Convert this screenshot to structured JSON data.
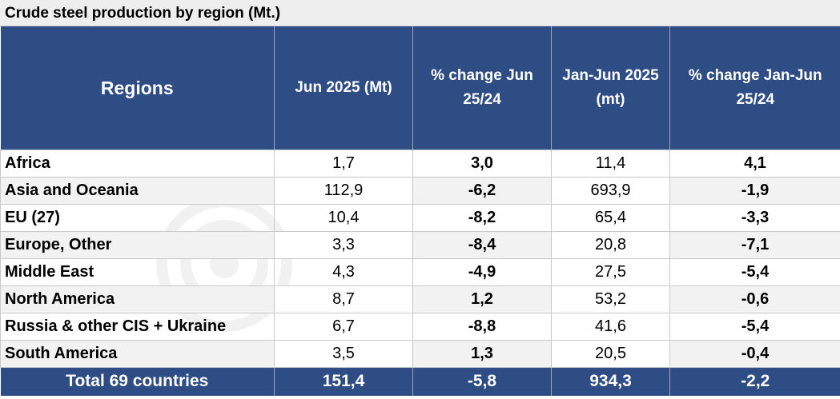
{
  "title": "Crude steel production by region (Mt.)",
  "headers": [
    "Regions",
    "Jun 2025 (Mt)",
    "% change Jun 25/24",
    "Jan-Jun 2025 (mt)",
    "% change Jan-Jun 25/24"
  ],
  "rows": [
    {
      "region": "Africa",
      "jun": "1,7",
      "jun_pct": "3,0",
      "ytd": "11,4",
      "ytd_pct": "4,1"
    },
    {
      "region": "Asia and Oceania",
      "jun": "112,9",
      "jun_pct": "-6,2",
      "ytd": "693,9",
      "ytd_pct": "-1,9"
    },
    {
      "region": "EU (27)",
      "jun": "10,4",
      "jun_pct": "-8,2",
      "ytd": "65,4",
      "ytd_pct": "-3,3"
    },
    {
      "region": "Europe, Other",
      "jun": "3,3",
      "jun_pct": "-8,4",
      "ytd": "20,8",
      "ytd_pct": "-7,1"
    },
    {
      "region": "Middle East",
      "jun": "4,3",
      "jun_pct": "-4,9",
      "ytd": "27,5",
      "ytd_pct": "-5,4"
    },
    {
      "region": "North America",
      "jun": "8,7",
      "jun_pct": "1,2",
      "ytd": "53,2",
      "ytd_pct": "-0,6"
    },
    {
      "region": "Russia & other CIS + Ukraine",
      "jun": "6,7",
      "jun_pct": "-8,8",
      "ytd": "41,6",
      "ytd_pct": "-5,4"
    },
    {
      "region": "South America",
      "jun": "3,5",
      "jun_pct": "1,3",
      "ytd": "20,5",
      "ytd_pct": "-0,4"
    }
  ],
  "total": {
    "region": "Total 69 countries",
    "jun": "151,4",
    "jun_pct": "-5,8",
    "ytd": "934,3",
    "ytd_pct": "-2,2"
  },
  "watermark": "steelRadar",
  "colors": {
    "header_bg": "#2d4d84",
    "header_text": "#ffffff",
    "alt_row": "#f2f2f2"
  }
}
